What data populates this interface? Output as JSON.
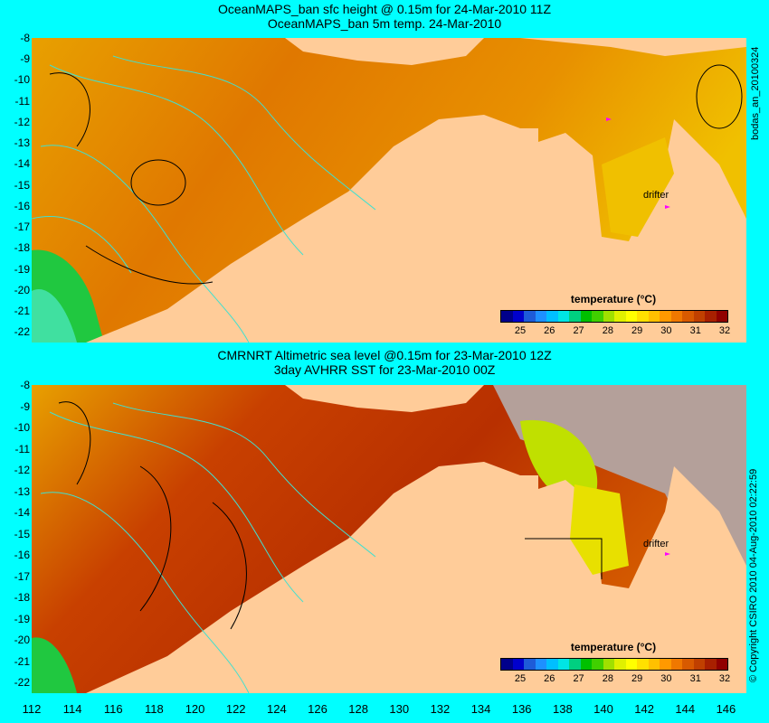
{
  "panel1": {
    "title_line1": "OceanMAPS_ban sfc height @ 0.15m for 24-Mar-2010 11Z",
    "title_line2": "OceanMAPS_ban 5m temp. 24-Mar-2010",
    "side_text": "bodas_an_20100324",
    "drifter_label": "drifter",
    "colorbar_title": "temperature (°C)"
  },
  "panel2": {
    "title_line1": "CMRNRT Altimetric sea level  @0.15m  for 23-Mar-2010 12Z",
    "title_line2": "3day AVHRR SST for 23-Mar-2010 00Z",
    "side_text": "© Copyright CSIRO 2010   04-Aug-2010 02:22:59",
    "drifter_label": "drifter",
    "colorbar_title": "temperature (°C)"
  },
  "axes": {
    "y_ticks": [
      "-8",
      "-9",
      "-10",
      "-11",
      "-12",
      "-13",
      "-14",
      "-15",
      "-16",
      "-17",
      "-18",
      "-19",
      "-20",
      "-21",
      "-22"
    ],
    "x_ticks": [
      "112",
      "114",
      "116",
      "118",
      "120",
      "122",
      "124",
      "126",
      "128",
      "130",
      "132",
      "134",
      "136",
      "138",
      "140",
      "142",
      "144",
      "146"
    ],
    "lat_range": [
      -8,
      -22.5
    ],
    "lon_range": [
      112,
      147
    ]
  },
  "colorbar": {
    "ticks": [
      "25",
      "26",
      "27",
      "28",
      "29",
      "30",
      "31",
      "32"
    ],
    "colors": [
      "#00008b",
      "#0000cd",
      "#1e5bd8",
      "#1e90ff",
      "#00bfff",
      "#00e5e5",
      "#00d080",
      "#00c000",
      "#40d000",
      "#a0e000",
      "#e0f000",
      "#ffff00",
      "#ffe000",
      "#ffc000",
      "#ff9900",
      "#f07800",
      "#d85a00",
      "#c04000",
      "#a82000",
      "#900000"
    ]
  },
  "colors": {
    "background": "#00ffff",
    "land": "#ffcc99",
    "ocean_warm": "#e07800",
    "ocean_hot": "#b83000",
    "ocean_cool": "#00c000",
    "contour_cyan": "#40e0d0",
    "contour_black": "#000000",
    "drifter": "#ff00ff",
    "no_data": "#b4a09a"
  }
}
